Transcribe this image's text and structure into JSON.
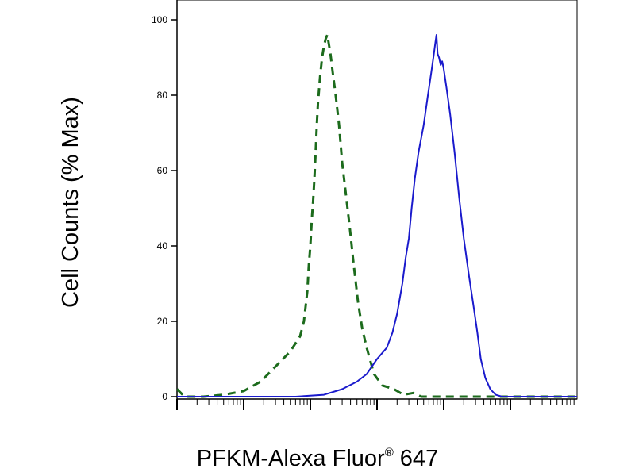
{
  "chart_data": {
    "type": "line",
    "title": "",
    "xlabel_main": "PFKM-Alexa Fluor",
    "xlabel_reg": "®",
    "xlabel_suffix": " 647",
    "ylabel": "Cell Counts (% Max)",
    "x_scale": "log",
    "xlim": [
      1,
      1000000
    ],
    "ylim": [
      0,
      100
    ],
    "y_ticks": [
      {
        "value": 0,
        "label": "0"
      },
      {
        "value": 20,
        "label": "20"
      },
      {
        "value": 40,
        "label": "40"
      },
      {
        "value": 60,
        "label": "60"
      },
      {
        "value": 80,
        "label": "80"
      },
      {
        "value": 100,
        "label": "100"
      }
    ],
    "grid": false,
    "legend": "none",
    "series": [
      {
        "color": "#1c6b1c",
        "line_style": "dashed",
        "points": [
          [
            1,
            2
          ],
          [
            1.3,
            0
          ],
          [
            2.5,
            0
          ],
          [
            5,
            0.5
          ],
          [
            10,
            1.5
          ],
          [
            18,
            4
          ],
          [
            30,
            8
          ],
          [
            50,
            12
          ],
          [
            70,
            16
          ],
          [
            80,
            20
          ],
          [
            90,
            28
          ],
          [
            95,
            35
          ],
          [
            100,
            40
          ],
          [
            105,
            47
          ],
          [
            110,
            52
          ],
          [
            115,
            58
          ],
          [
            120,
            65
          ],
          [
            125,
            72
          ],
          [
            130,
            78
          ],
          [
            140,
            85
          ],
          [
            150,
            90
          ],
          [
            160,
            93
          ],
          [
            170,
            95
          ],
          [
            180,
            96
          ],
          [
            200,
            91
          ],
          [
            220,
            85
          ],
          [
            240,
            80
          ],
          [
            270,
            72
          ],
          [
            300,
            62
          ],
          [
            340,
            54
          ],
          [
            390,
            45
          ],
          [
            440,
            36
          ],
          [
            520,
            25
          ],
          [
            600,
            18
          ],
          [
            700,
            13
          ],
          [
            900,
            6
          ],
          [
            1200,
            3
          ],
          [
            1800,
            2
          ],
          [
            2500,
            0.5
          ],
          [
            3500,
            1
          ],
          [
            4600,
            0
          ],
          [
            10000,
            0
          ],
          [
            1000000,
            0
          ]
        ]
      },
      {
        "color": "#1a1acc",
        "line_style": "solid",
        "points": [
          [
            1,
            0
          ],
          [
            10,
            0
          ],
          [
            60,
            0
          ],
          [
            160,
            0.5
          ],
          [
            300,
            2
          ],
          [
            500,
            4
          ],
          [
            700,
            6
          ],
          [
            1000,
            10
          ],
          [
            1400,
            13
          ],
          [
            1700,
            17
          ],
          [
            2000,
            22
          ],
          [
            2400,
            30
          ],
          [
            2700,
            37
          ],
          [
            3000,
            42
          ],
          [
            3300,
            50
          ],
          [
            3700,
            58
          ],
          [
            4200,
            65
          ],
          [
            5000,
            72
          ],
          [
            5800,
            80
          ],
          [
            6500,
            86
          ],
          [
            7000,
            90
          ],
          [
            7500,
            94
          ],
          [
            7800,
            96
          ],
          [
            8100,
            91
          ],
          [
            8500,
            90
          ],
          [
            9000,
            88
          ],
          [
            9500,
            89
          ],
          [
            10000,
            87
          ],
          [
            11000,
            82
          ],
          [
            12500,
            75
          ],
          [
            14500,
            65
          ],
          [
            17000,
            53
          ],
          [
            20000,
            42
          ],
          [
            24000,
            32
          ],
          [
            28000,
            24
          ],
          [
            32000,
            17
          ],
          [
            36000,
            10
          ],
          [
            42000,
            5
          ],
          [
            50000,
            2
          ],
          [
            60000,
            0.5
          ],
          [
            75000,
            0
          ],
          [
            1000000,
            0
          ]
        ]
      }
    ]
  }
}
